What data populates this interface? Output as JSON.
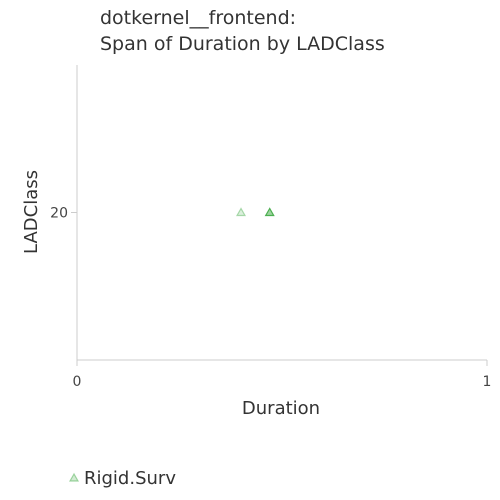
{
  "chart_data": {
    "type": "scatter",
    "title": [
      "dotkernel__frontend:",
      "Span of Duration by LADClass"
    ],
    "xlabel": "Duration",
    "ylabel": "LADClass",
    "xlim": [
      0,
      1
    ],
    "ylim": [
      10,
      30
    ],
    "xticks": [
      "0",
      "1"
    ],
    "yticks": [
      {
        "value": 20,
        "label": "20"
      }
    ],
    "marker": "triangle",
    "legend_position": "bottom-left",
    "series": [
      {
        "name": "Rigid.Surv",
        "color": "#4caf50",
        "points": [
          {
            "x": 0.4,
            "y": 20,
            "emphasis": "light"
          },
          {
            "x": 0.47,
            "y": 20,
            "emphasis": "strong"
          }
        ]
      }
    ]
  }
}
